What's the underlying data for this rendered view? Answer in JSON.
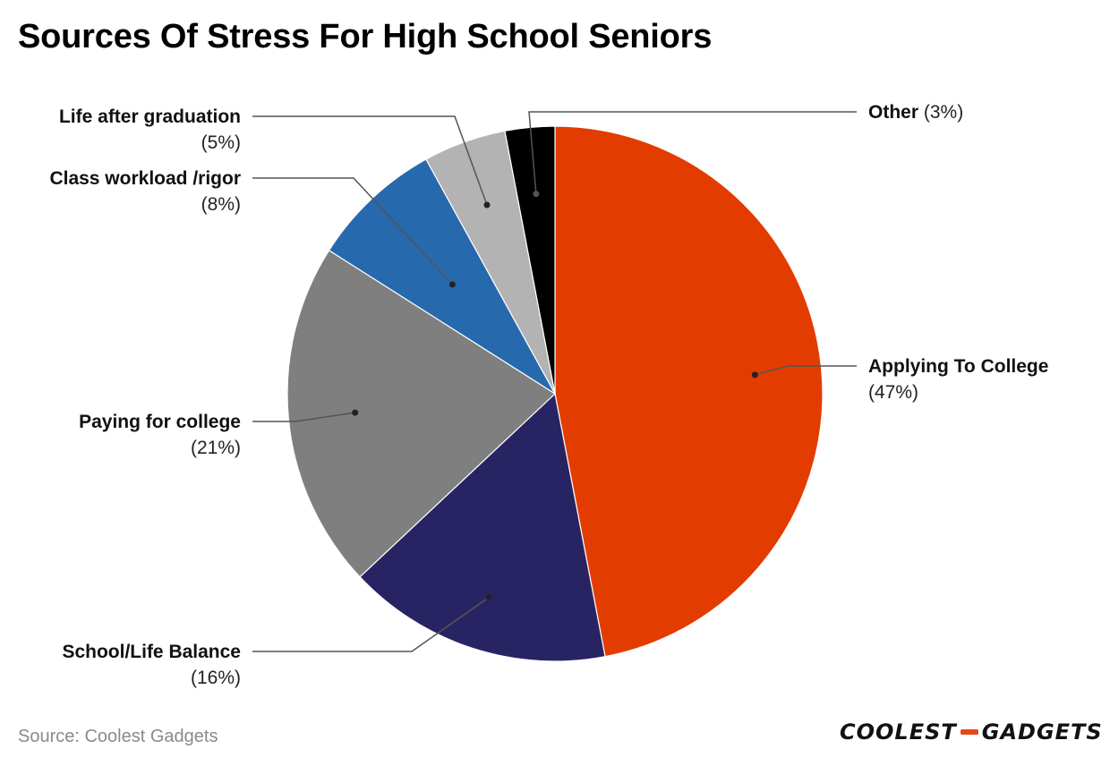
{
  "title": "Sources Of Stress For High School Seniors",
  "source": "Source: Coolest Gadgets",
  "logo": {
    "left": "COOLEST",
    "right": "GADGETS"
  },
  "chart_data": {
    "type": "pie",
    "title": "Sources Of Stress For High School Seniors",
    "start": "12 o'clock, clockwise",
    "slices": [
      {
        "label": "Applying To College",
        "pct_label": "(47%)",
        "value": 47,
        "color": "#e33c00"
      },
      {
        "label": "School/Life Balance",
        "pct_label": "(16%)",
        "value": 16,
        "color": "#282463"
      },
      {
        "label": "Paying for college",
        "pct_label": "(21%)",
        "value": 21,
        "color": "#7f7f7f"
      },
      {
        "label": "Class workload /rigor",
        "pct_label": "(8%)",
        "value": 8,
        "color": "#2769ad"
      },
      {
        "label": "Life after graduation",
        "pct_label": "(5%)",
        "value": 5,
        "color": "#b3b3b3"
      },
      {
        "label": "Other",
        "pct_label": "(3%)",
        "value": 3,
        "color": "#000000"
      }
    ]
  }
}
